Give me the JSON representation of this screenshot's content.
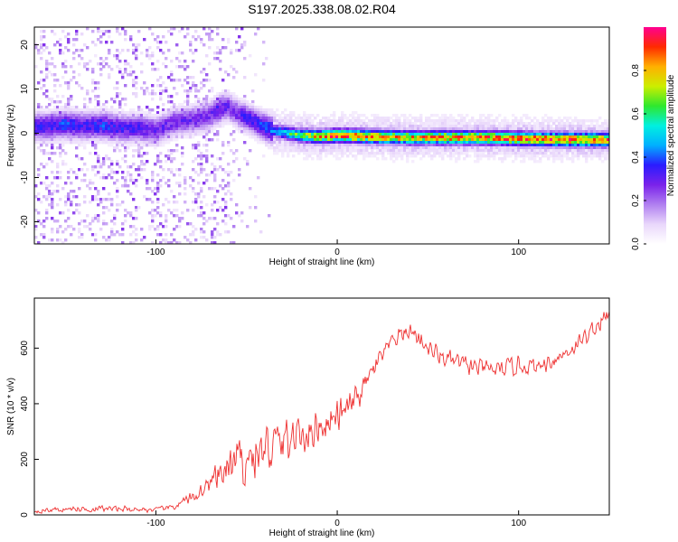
{
  "figure_title": "S197.2025.338.08.02.R04",
  "colors": {
    "line": "#ee3030",
    "colormap": [
      "#ffffff",
      "#e9d7fb",
      "#b07ff0",
      "#7a22ea",
      "#2a1cff",
      "#00b0ff",
      "#00f0e0",
      "#2ee82e",
      "#ccee00",
      "#ffb000",
      "#ff2a00",
      "#ff0090"
    ]
  },
  "chart_data": [
    {
      "type": "heatmap",
      "title": "",
      "xlabel": "Height of straight line (km)",
      "ylabel": "Frequency (Hz)",
      "xlim": [
        -167,
        150
      ],
      "ylim": [
        -25,
        24
      ],
      "xticks": [
        -100,
        0,
        100
      ],
      "yticks": [
        -20,
        -10,
        0,
        10,
        20
      ],
      "xtick_labels": [
        "-100",
        "0",
        "100"
      ],
      "ytick_labels": [
        "-20",
        "-10",
        "0",
        "10",
        "20"
      ],
      "ridge": {
        "description": "frequency of peak spectral amplitude vs height",
        "x": [
          -160,
          -150,
          -140,
          -130,
          -120,
          -110,
          -100,
          -90,
          -80,
          -70,
          -65,
          -60,
          -55,
          -50,
          -45,
          -40,
          -35,
          -30,
          -20,
          -10,
          0,
          20,
          40,
          60,
          80,
          100,
          120,
          150
        ],
        "y": [
          1.5,
          2,
          1.5,
          1.8,
          1.2,
          1.2,
          0.5,
          2.5,
          3,
          4,
          5.5,
          6,
          4.5,
          3.5,
          2.5,
          1.5,
          0.5,
          0.2,
          -0.5,
          -0.8,
          -0.5,
          -0.8,
          -1,
          -1,
          -1,
          -1.2,
          -1.4,
          -1.5
        ],
        "peak_amplitude": [
          0.35,
          0.4,
          0.35,
          0.4,
          0.35,
          0.35,
          0.3,
          0.3,
          0.3,
          0.3,
          0.35,
          0.3,
          0.3,
          0.35,
          0.35,
          0.4,
          0.45,
          0.55,
          0.7,
          0.85,
          0.95,
          0.9,
          0.85,
          0.9,
          0.9,
          0.95,
          0.95,
          0.95
        ]
      },
      "colorbar": {
        "label": "Normalized spectral amplitude",
        "range": [
          0,
          1
        ],
        "ticks": [
          0,
          0.2,
          0.4,
          0.6,
          0.8
        ],
        "tick_labels": [
          "0.0",
          "0.2",
          "0.4",
          "0.6",
          "0.8"
        ]
      }
    },
    {
      "type": "line",
      "title": "",
      "xlabel": "Height of straight line (km)",
      "ylabel": "SNR (10 * v/v)",
      "xlim": [
        -167,
        150
      ],
      "ylim": [
        0,
        780
      ],
      "xticks": [
        -100,
        0,
        100
      ],
      "yticks": [
        0,
        200,
        400,
        600
      ],
      "xtick_labels": [
        "-100",
        "0",
        "100"
      ],
      "ytick_labels": [
        "0",
        "200",
        "400",
        "600"
      ],
      "series": [
        {
          "name": "SNR",
          "x": [
            -167,
            -150,
            -130,
            -110,
            -100,
            -90,
            -80,
            -70,
            -65,
            -60,
            -50,
            -40,
            -30,
            -20,
            -10,
            0,
            10,
            20,
            30,
            35,
            40,
            45,
            50,
            60,
            70,
            80,
            90,
            100,
            110,
            120,
            130,
            140,
            150
          ],
          "y": [
            15,
            20,
            22,
            20,
            18,
            30,
            60,
            110,
            140,
            170,
            200,
            230,
            260,
            290,
            320,
            350,
            410,
            520,
            620,
            650,
            660,
            640,
            600,
            560,
            540,
            525,
            520,
            540,
            530,
            560,
            600,
            660,
            720
          ],
          "noise_amplitude": [
            12,
            12,
            14,
            12,
            10,
            15,
            25,
            50,
            70,
            90,
            110,
            120,
            110,
            90,
            80,
            70,
            60,
            50,
            40,
            40,
            40,
            40,
            40,
            40,
            40,
            40,
            40,
            40,
            35,
            35,
            35,
            40,
            40
          ]
        }
      ]
    }
  ]
}
